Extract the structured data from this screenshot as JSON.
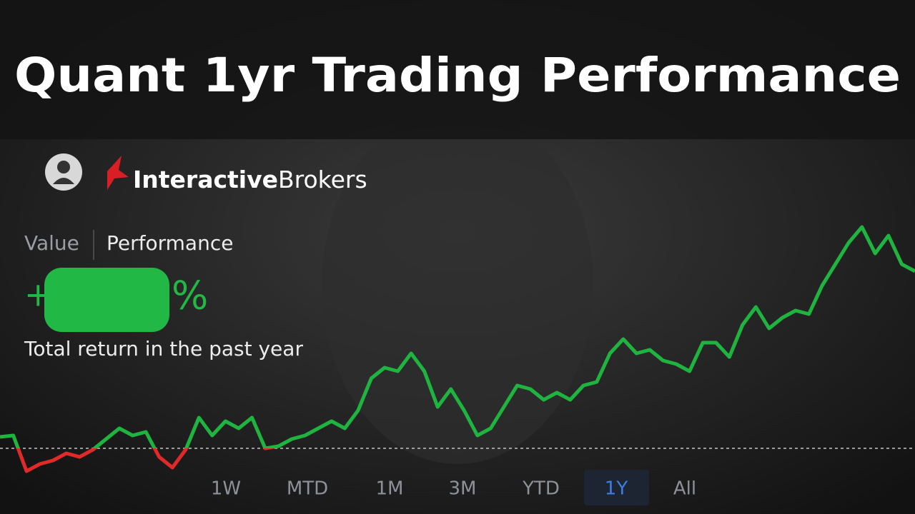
{
  "header": {
    "title": "Quant 1yr Trading Performance"
  },
  "brand": {
    "name_bold": "Interactive",
    "name_regular": "Brokers"
  },
  "tabs": [
    "Value",
    "Performance"
  ],
  "performance": {
    "sign": "+",
    "unit": "%",
    "caption": "Total return in the past year"
  },
  "chart_data": {
    "type": "line",
    "values": [
      1.6,
      1.8,
      -3.2,
      -2.2,
      -1.7,
      -0.7,
      -1.2,
      -0.2,
      1.3,
      2.8,
      1.8,
      2.3,
      -1.2,
      -2.7,
      -0.2,
      4.3,
      1.8,
      3.8,
      2.8,
      4.3,
      0,
      0.3,
      1.3,
      1.8,
      2.8,
      3.8,
      2.8,
      5.3,
      9.8,
      11.3,
      10.8,
      13.3,
      10.8,
      5.8,
      8.3,
      5.3,
      1.8,
      2.8,
      5.8,
      8.8,
      8.3,
      6.8,
      7.8,
      6.8,
      8.8,
      9.3,
      13.3,
      15.3,
      13.3,
      13.8,
      12.3,
      11.8,
      10.8,
      14.8,
      14.8,
      12.8,
      17.3,
      19.8,
      16.8,
      18.3,
      19.3,
      18.8,
      22.8,
      25.8,
      28.8,
      31.0,
      27.3,
      29.8,
      25.8,
      24.8
    ],
    "color": "#1fb33f",
    "negative_color": "#e02a2a",
    "reference_line": 0,
    "ylim": [
      -9,
      32
    ]
  },
  "ranges": {
    "options": [
      "1W",
      "MTD",
      "1M",
      "3M",
      "YTD",
      "1Y",
      "All"
    ],
    "selected": "1Y"
  }
}
